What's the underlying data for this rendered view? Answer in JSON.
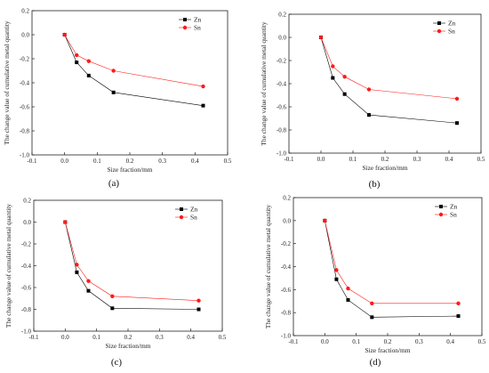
{
  "figure": {
    "panel_labels": [
      "(a)",
      "(b)",
      "(c)",
      "(d)"
    ]
  },
  "series_colors": {
    "Zn": "#000000",
    "Sn": "#ff1a1a"
  },
  "chart_data": [
    {
      "type": "line",
      "panel": "(a)",
      "xlabel": "Size fraction/mm",
      "ylabel": "The change value of cumulative metal quantity",
      "xlim": [
        -0.1,
        0.5
      ],
      "ylim": [
        -1.0,
        0.2
      ],
      "xticks": [
        "-0.1",
        "0.0",
        "0.1",
        "0.2",
        "0.3",
        "0.4",
        "0.5"
      ],
      "yticks": [
        "-1.0",
        "-0.8",
        "-0.6",
        "-0.4",
        "-0.2",
        "0.0",
        "0.2"
      ],
      "legend_position": "top-right",
      "x": [
        0,
        0.037,
        0.074,
        0.15,
        0.425
      ],
      "series": [
        {
          "name": "Zn",
          "values": [
            0,
            -0.23,
            -0.34,
            -0.48,
            -0.59
          ]
        },
        {
          "name": "Sn",
          "values": [
            0,
            -0.17,
            -0.22,
            -0.3,
            -0.43
          ]
        }
      ]
    },
    {
      "type": "line",
      "panel": "(b)",
      "xlabel": "Size fraction/mm",
      "ylabel": "The change value of cumulative metal quantity",
      "xlim": [
        -0.1,
        0.5
      ],
      "ylim": [
        -1.0,
        0.2
      ],
      "xticks": [
        "-0.1",
        "0.0",
        "0.1",
        "0.2",
        "0.3",
        "0.4",
        "0.5"
      ],
      "yticks": [
        "-1.0",
        "-0.8",
        "-0.6",
        "-0.4",
        "-0.2",
        "0.0",
        "0.2"
      ],
      "legend_position": "top-right",
      "x": [
        0,
        0.037,
        0.074,
        0.15,
        0.425
      ],
      "series": [
        {
          "name": "Zn",
          "values": [
            0,
            -0.35,
            -0.49,
            -0.67,
            -0.74
          ]
        },
        {
          "name": "Sn",
          "values": [
            0,
            -0.25,
            -0.34,
            -0.45,
            -0.53
          ]
        }
      ]
    },
    {
      "type": "line",
      "panel": "(c)",
      "xlabel": "Size fraction/mm",
      "ylabel": "The change value of cumulative metal quantity",
      "xlim": [
        -0.1,
        0.5
      ],
      "ylim": [
        -1.0,
        0.2
      ],
      "xticks": [
        "-0.1",
        "0.0",
        "0.1",
        "0.2",
        "0.3",
        "0.4",
        "0.5"
      ],
      "yticks": [
        "-1.0",
        "-0.8",
        "-0.6",
        "-0.4",
        "-0.2",
        "0.0",
        "0.2"
      ],
      "legend_position": "top-right",
      "x": [
        0,
        0.037,
        0.074,
        0.15,
        0.425
      ],
      "series": [
        {
          "name": "Zn",
          "values": [
            0,
            -0.46,
            -0.63,
            -0.79,
            -0.8
          ]
        },
        {
          "name": "Sn",
          "values": [
            0,
            -0.39,
            -0.54,
            -0.68,
            -0.72
          ]
        }
      ]
    },
    {
      "type": "line",
      "panel": "(d)",
      "xlabel": "Size fraction/mm",
      "ylabel": "The change value of cumulative metal quantity",
      "xlim": [
        -0.1,
        0.5
      ],
      "ylim": [
        -1.0,
        0.2
      ],
      "xticks": [
        "-0.1",
        "0.0",
        "0.1",
        "0.2",
        "0.3",
        "0.4",
        "0.5"
      ],
      "yticks": [
        "-1.0",
        "-0.8",
        "-0.6",
        "-0.4",
        "-0.2",
        "0.0",
        "0.2"
      ],
      "legend_position": "top-right",
      "x": [
        0,
        0.037,
        0.074,
        0.15,
        0.425
      ],
      "series": [
        {
          "name": "Zn",
          "values": [
            0,
            -0.51,
            -0.69,
            -0.84,
            -0.83
          ]
        },
        {
          "name": "Sn",
          "values": [
            0,
            -0.43,
            -0.59,
            -0.72,
            -0.72
          ]
        }
      ]
    }
  ]
}
